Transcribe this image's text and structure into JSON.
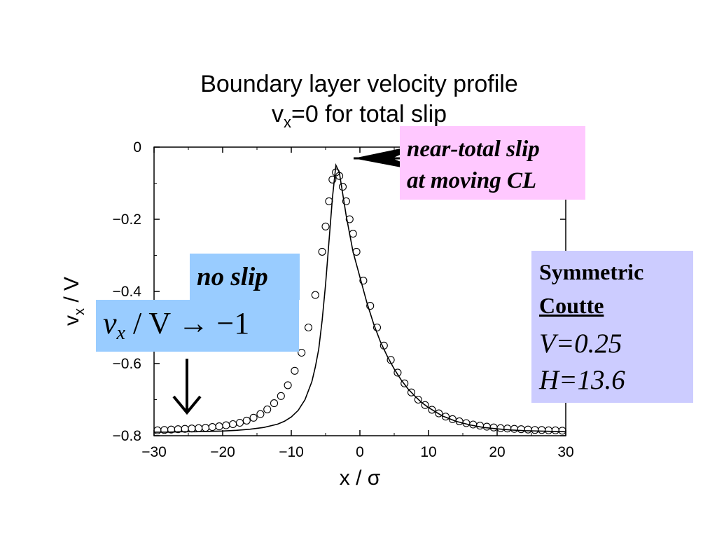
{
  "chart_data": {
    "type": "scatter",
    "title": "Boundary layer velocity profile",
    "subtitle_prefix": "v",
    "subtitle_subscript": "x",
    "subtitle_suffix": "=0 for total slip",
    "xlabel": "x / σ",
    "ylabel_main": "v",
    "ylabel_sub": "x",
    "ylabel_suffix": " / V",
    "xlim": [
      -30,
      30
    ],
    "ylim": [
      -0.8,
      0
    ],
    "xticks": [
      -30,
      -20,
      -10,
      0,
      10,
      20,
      30
    ],
    "yticks": [
      0,
      -0.2,
      -0.4,
      -0.6,
      -0.8
    ],
    "ytick_labels": [
      "0",
      "−0.2",
      "−0.4",
      "−0.6",
      "−0.8"
    ],
    "xtick_labels": [
      "−30",
      "−20",
      "−10",
      "0",
      "10",
      "20",
      "30"
    ],
    "grid": false,
    "series": [
      {
        "style": "open-circles",
        "x": [
          -29.5,
          -28.5,
          -27.5,
          -26.5,
          -25.5,
          -24.5,
          -23.5,
          -22.5,
          -21.5,
          -20.5,
          -19.5,
          -18.5,
          -17.5,
          -16.5,
          -15.5,
          -14.5,
          -13.5,
          -12.5,
          -11.5,
          -10.5,
          -9.5,
          -8.5,
          -7.5,
          -6.5,
          -5.5,
          -5.0,
          -4.5,
          -4.0,
          -3.5,
          -3.0,
          -2.5,
          -2.0,
          -1.5,
          -1.0,
          -0.5,
          0.5,
          1.5,
          2.5,
          3.5,
          4.5,
          5.5,
          6.5,
          7.5,
          8.5,
          9.5,
          10.5,
          11.5,
          12.5,
          13.5,
          14.5,
          15.5,
          16.5,
          17.5,
          18.5,
          19.5,
          20.5,
          21.5,
          22.5,
          23.5,
          24.5,
          25.5,
          26.5,
          27.5,
          28.5,
          29.5
        ],
        "y": [
          -0.785,
          -0.784,
          -0.783,
          -0.782,
          -0.781,
          -0.78,
          -0.779,
          -0.778,
          -0.776,
          -0.774,
          -0.771,
          -0.768,
          -0.764,
          -0.758,
          -0.75,
          -0.74,
          -0.727,
          -0.71,
          -0.69,
          -0.66,
          -0.62,
          -0.57,
          -0.5,
          -0.41,
          -0.29,
          -0.22,
          -0.15,
          -0.09,
          -0.07,
          -0.08,
          -0.11,
          -0.15,
          -0.2,
          -0.24,
          -0.29,
          -0.37,
          -0.44,
          -0.5,
          -0.55,
          -0.59,
          -0.625,
          -0.655,
          -0.68,
          -0.7,
          -0.715,
          -0.728,
          -0.738,
          -0.747,
          -0.754,
          -0.76,
          -0.765,
          -0.769,
          -0.772,
          -0.775,
          -0.777,
          -0.779,
          -0.78,
          -0.781,
          -0.782,
          -0.783,
          -0.784,
          -0.784,
          -0.785,
          -0.785,
          -0.786
        ]
      },
      {
        "style": "solid-line",
        "x": [
          -30,
          -28,
          -26,
          -24,
          -22,
          -20,
          -18,
          -16,
          -14,
          -12,
          -11,
          -10,
          -9,
          -8,
          -7,
          -6.5,
          -6,
          -5.5,
          -5,
          -4.5,
          -4,
          -3.5,
          -3,
          -2.5,
          -2,
          -1.5,
          -1,
          0,
          1,
          2,
          3,
          4,
          5,
          6,
          7,
          8,
          9,
          10,
          12,
          14,
          16,
          18,
          20,
          22,
          24,
          26,
          28,
          30
        ],
        "y": [
          -0.79,
          -0.79,
          -0.789,
          -0.789,
          -0.788,
          -0.787,
          -0.785,
          -0.782,
          -0.777,
          -0.768,
          -0.76,
          -0.748,
          -0.73,
          -0.7,
          -0.65,
          -0.61,
          -0.56,
          -0.48,
          -0.38,
          -0.26,
          -0.14,
          -0.05,
          -0.07,
          -0.13,
          -0.19,
          -0.24,
          -0.29,
          -0.36,
          -0.43,
          -0.49,
          -0.54,
          -0.58,
          -0.615,
          -0.645,
          -0.67,
          -0.69,
          -0.708,
          -0.722,
          -0.745,
          -0.76,
          -0.77,
          -0.777,
          -0.781,
          -0.784,
          -0.786,
          -0.787,
          -0.788,
          -0.789
        ]
      }
    ]
  },
  "annotations": {
    "slip_line1": "near-total slip",
    "slip_line2": "at moving CL",
    "noslip_label": "no slip",
    "noslip_eq_v": "v",
    "noslip_eq_sub": "x",
    "noslip_eq_rest": " / V  → −1",
    "down_arrow_glyph": "↓",
    "params_line1": "Symmetric",
    "params_line2": "Coutte",
    "params_line3": "V=0.25",
    "params_line4": "H=13.6"
  },
  "colors": {
    "slip_box": "#ffc8ff",
    "noslip_box": "#99ccff",
    "params_box": "#ccccff"
  }
}
